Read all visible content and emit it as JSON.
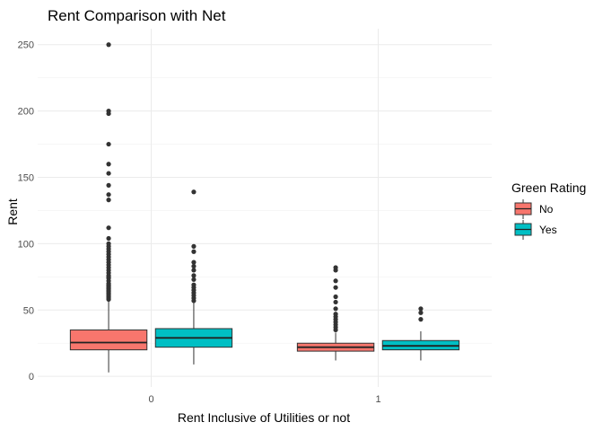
{
  "chart_data": {
    "type": "boxplot",
    "title": "Rent Comparison with Net",
    "xlabel": "Rent Inclusive of Utilities or not",
    "ylabel": "Rent",
    "categories": [
      "0",
      "1"
    ],
    "ylim": [
      -8,
      262
    ],
    "y_ticks": [
      0,
      50,
      100,
      150,
      200,
      250
    ],
    "grid": true,
    "legend": {
      "title": "Green Rating",
      "position": "right"
    },
    "series": [
      {
        "name": "No",
        "color": "#F8766D",
        "boxes": [
          {
            "category": "0",
            "min": 3,
            "q1": 20,
            "median": 25.5,
            "q3": 35,
            "max": 57,
            "outliers": [
              58,
              59,
              60,
              61,
              62,
              63,
              64,
              65,
              66,
              67,
              68,
              69,
              70,
              72,
              74,
              75,
              76,
              78,
              80,
              82,
              84,
              86,
              88,
              90,
              92,
              94,
              96,
              98,
              100,
              104,
              112,
              133,
              137,
              144,
              153,
              160,
              175,
              198,
              200,
              250
            ]
          },
          {
            "category": "1",
            "min": 12,
            "q1": 19,
            "median": 22,
            "q3": 25,
            "max": 33,
            "outliers": [
              35,
              37,
              39,
              41,
              43,
              45,
              47,
              51,
              56,
              60,
              67,
              72,
              80,
              82
            ]
          }
        ]
      },
      {
        "name": "Yes",
        "color": "#00BFC4",
        "boxes": [
          {
            "category": "0",
            "min": 9,
            "q1": 22,
            "median": 29,
            "q3": 36,
            "max": 56,
            "outliers": [
              57,
              59,
              61,
              63,
              65,
              67,
              69,
              73,
              76,
              80,
              83,
              86,
              94,
              98,
              139
            ]
          },
          {
            "category": "1",
            "min": 12,
            "q1": 20,
            "median": 23,
            "q3": 27,
            "max": 34,
            "outliers": [
              43,
              48,
              51
            ]
          }
        ]
      }
    ]
  }
}
